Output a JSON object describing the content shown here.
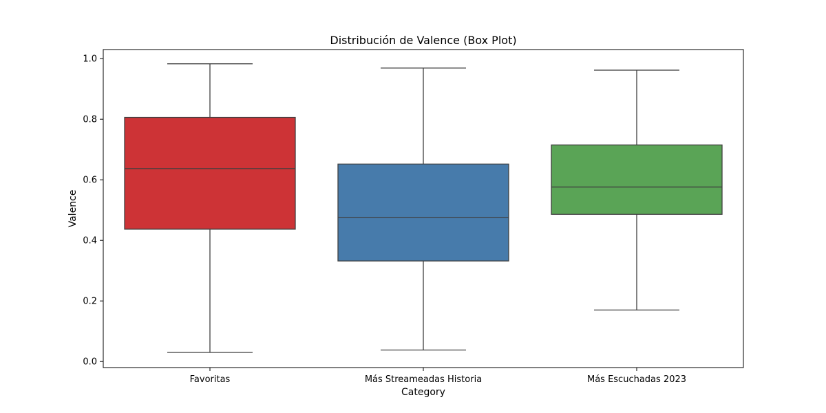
{
  "chart_data": {
    "type": "box",
    "title": "Distribución de Valence (Box Plot)",
    "xlabel": "Category",
    "ylabel": "Valence",
    "ylim": [
      -0.02,
      1.03
    ],
    "yticks": [
      0.0,
      0.2,
      0.4,
      0.6,
      0.8,
      1.0
    ],
    "ytick_labels": [
      "0.0",
      "0.2",
      "0.4",
      "0.6",
      "0.8",
      "1.0"
    ],
    "grid": false,
    "categories": [
      "Favoritas",
      "Más Streameadas Historia",
      "Más Escuchadas 2023"
    ],
    "boxes": [
      {
        "category": "Favoritas",
        "whisker_low": 0.03,
        "q1": 0.437,
        "median": 0.637,
        "q3": 0.806,
        "whisker_high": 0.983,
        "color": "#cd3336"
      },
      {
        "category": "Más Streameadas Historia",
        "whisker_low": 0.038,
        "q1": 0.332,
        "median": 0.476,
        "q3": 0.652,
        "whisker_high": 0.969,
        "color": "#477bab"
      },
      {
        "category": "Más Escuchadas 2023",
        "whisker_low": 0.17,
        "q1": 0.486,
        "median": 0.576,
        "q3": 0.715,
        "whisker_high": 0.962,
        "color": "#5aa456"
      }
    ]
  }
}
